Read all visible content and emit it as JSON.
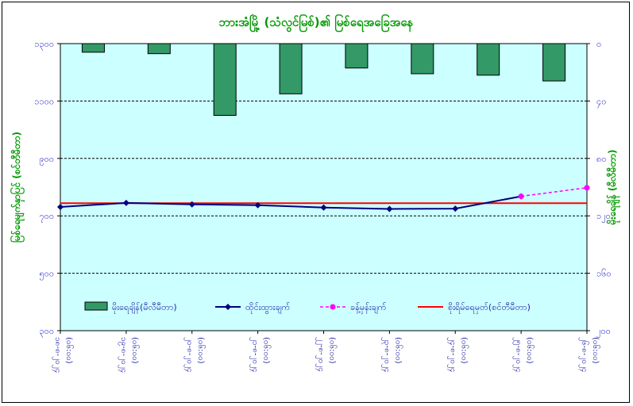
{
  "chart_data": {
    "type": "bar+line",
    "title": "ဘားအံမြို့ (သံလွင်မြစ်)၏ မြစ်ရေအခြေအနေ",
    "categories": [
      "၁၈-၈-၂၀၂၄ (၀၆:၀၀)",
      "၁၉-၈-၂၀၂၄ (၀၆:၀၀)",
      "၂၀-၈-၂၀၂၄ (၀၆:၀၀)",
      "၂၁-၈-၂၀၂၄ (၀၆:၀၀)",
      "၂၂-၈-၂၀၂၄ (၀၆:၀၀)",
      "၂၃-၈-၂၀၂၄ (၀၆:၀၀)",
      "၂၄-၈-၂၀၂၄ (၀၆:၀၀)",
      "၂၅-၈-၂၀၂၄ (၀၆:၀၀)",
      "၂၆-၈-၂၀၂၄ (၀၆:၀၀)"
    ],
    "left_axis": {
      "label": "မြစ်ရေမျက်နှာပြင် (စင်တီမီတာ)",
      "min": 300,
      "max": 1300,
      "ticks": [
        300,
        500,
        700,
        900,
        1100,
        1300
      ],
      "tick_labels": [
        "၃၀၀",
        "၅၀၀",
        "၇၀၀",
        "၉၀၀",
        "၁၁၀၀",
        "၁၃၀၀"
      ]
    },
    "right_axis": {
      "label": "မိုးရေချိန် (မီလီမီတာ)",
      "min": 0,
      "max": 200,
      "reversed": true,
      "ticks": [
        0,
        40,
        80,
        120,
        160,
        200
      ],
      "tick_labels": [
        "၀",
        "၄၀",
        "၈၀",
        "၁၂၀",
        "၁၆၀",
        "၂၀၀"
      ]
    },
    "series": [
      {
        "name": "မိုးရေချိန်(မီလီမီတာ)",
        "kind": "bar",
        "axis": "right",
        "color": "#339966",
        "values": [
          6,
          7,
          50,
          35,
          17,
          21,
          22,
          26,
          null
        ]
      },
      {
        "name": "ထိုင်းထွားချက်",
        "kind": "line",
        "axis": "left",
        "color": "#000080",
        "values": [
          731,
          745,
          740,
          737,
          729,
          724,
          725,
          768,
          null
        ]
      },
      {
        "name": "ခန့်မှန်းချက်",
        "kind": "line-dashed",
        "axis": "left",
        "color": "#ff00ff",
        "values": [
          null,
          null,
          null,
          null,
          null,
          null,
          null,
          768,
          798
        ]
      },
      {
        "name": "စိုးရိမ်ရေမှတ်(စင်တီမီတာ)",
        "kind": "hline",
        "axis": "left",
        "color": "#ff0000",
        "value": 744
      }
    ],
    "legend_position": "bottom-inside",
    "grid": "horizontal-dashed"
  },
  "colors": {
    "plot_bg": "#ccffff",
    "bar": "#339966",
    "observed": "#000080",
    "forecast": "#ff00ff",
    "danger": "#ff0000"
  }
}
